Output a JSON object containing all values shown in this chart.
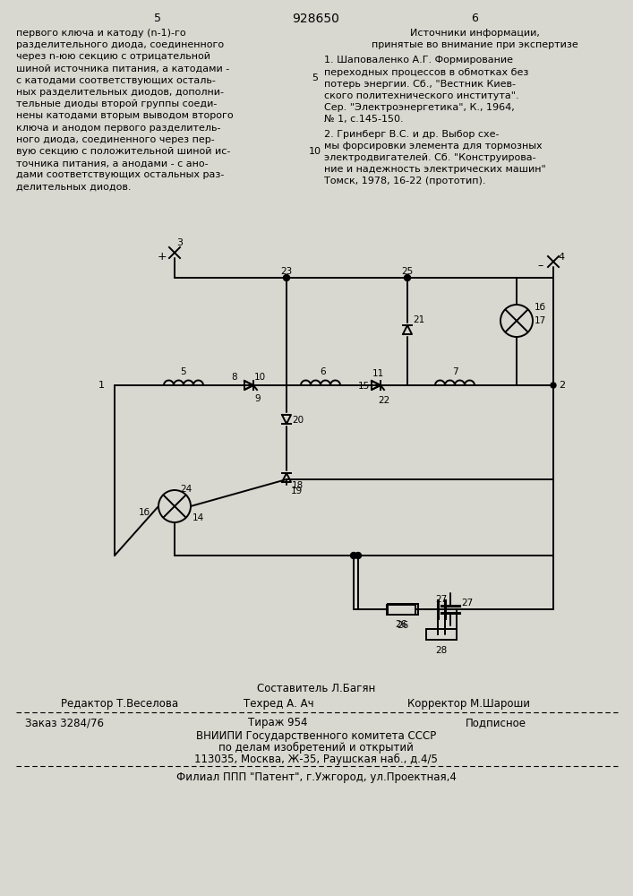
{
  "bg_color": "#d8d8d0",
  "text_color": "#000000",
  "page_number_left": "5",
  "patent_number": "928650",
  "page_number_right": "6",
  "left_column_lines": [
    "первого ключа и катоду (n-1)-го",
    "разделительного диода, соединенного",
    "через n-юю секцию с отрицательной",
    "шиной источника питания, а катодами -",
    "с катодами соответствующих осталь-",
    "ных разделительных диодов, дополни-",
    "тельные диоды второй группы соеди-",
    "нены катодами вторым выводом второго",
    "ключа и анодом первого разделитель-",
    "ного диода, соединенного через пер-",
    "вую секцию с положительной шиной ис-",
    "точника питания, а анодами - с ано-",
    "дами соответствующих остальных раз-",
    "делительных диодов."
  ],
  "right_col_title": "Источники информации,",
  "right_col_subtitle": "принятые во внимание при экспертизе",
  "ref1_lines": [
    "1. Шаповаленко А.Г. Формирование",
    "переходных процессов в обмотках без",
    "потерь энергии. Сб., \"Вестник Киев-",
    "ского политехнического института\".",
    "Сер. \"Электроэнергетика\", К., 1964,",
    "№ 1, с.145-150."
  ],
  "ref2_lines": [
    "2. Гринберг В.С. и др. Выбор схе-",
    "мы форсировки элемента для тормозных",
    "электродвигателей. Сб. \"Конструирова-",
    "ние и надежность электрических машин\"",
    "Томск, 1978, 16-22 (прототип)."
  ],
  "footer_composer": "Составитель Л.Багян",
  "footer_editor": "Редактор Т.Веселова",
  "footer_tech": "Техред А. Ач",
  "footer_corrector": "Корректор М.Шароши",
  "footer_order": "Заказ 3284/76",
  "footer_edition": "Тираж 954",
  "footer_subscription": "Подписное",
  "footer_org1": "ВНИИПИ Государственного комитета СССР",
  "footer_org2": "по делам изобретений и открытий",
  "footer_org3": "113035, Москва, Ж-35, Раушская наб., д.4/5",
  "footer_filial": "Филиал ППП \"Патент\", г.Ужгород, ул.Проектная,4"
}
